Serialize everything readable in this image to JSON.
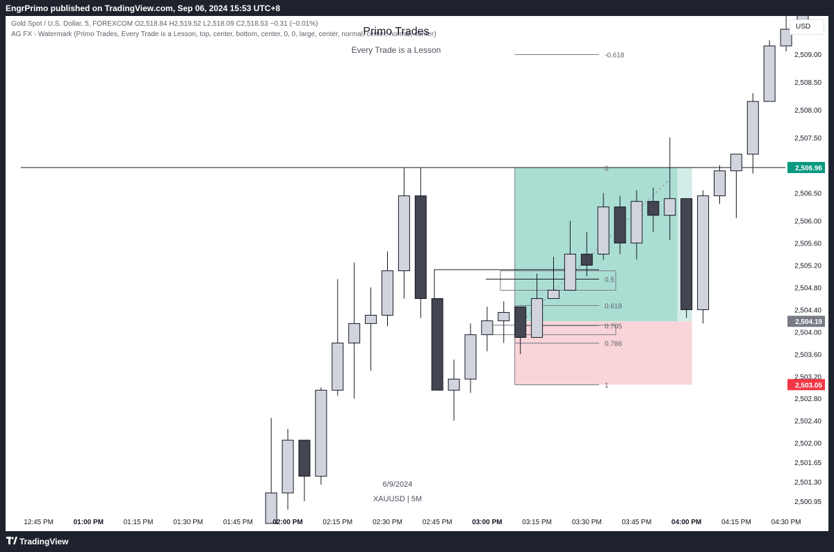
{
  "header": {
    "publish_line": "EngrPrimo published on TradingView.com, Sep 06, 2024 15:53 UTC+8"
  },
  "legend": {
    "symbol_line": "Gold Spot / U.S. Dollar, 5, FOREXCOM",
    "open": "O2,518.84",
    "high": "H2,519.52",
    "low": "L2,518.09",
    "close": "C2,518.53",
    "change": "−0.31 (−0.01%)",
    "indicator_line": "AG FX - Watermark (Primo Trades, Every Trade is a Lesson, top, center, bottom, center, 0, 0, large, center, normal, center, normal, center)"
  },
  "watermark": {
    "title": "Primo Trades",
    "subtitle": "Every Trade is a Lesson",
    "date": "6/9/2024",
    "symbol": "XAUUSD | 5M"
  },
  "toolbar": {
    "currency_label": "USD"
  },
  "footer": {
    "brand": "TradingView"
  },
  "colors": {
    "bull_fill": "#d1d4dc",
    "bear_fill": "#434651",
    "candle_border": "#131722",
    "target_zone": "#8fd3c4",
    "stop_zone": "#f7c9ce",
    "last_price_badge": "#089981",
    "stop_badge": "#f23645",
    "entry_badge": "#787b86"
  },
  "chart_data": {
    "type": "candlestick",
    "timeframe": "5",
    "y_axis_ticks": [
      "2,509.00",
      "2,508.50",
      "2,508.00",
      "2,507.50",
      "2,506.50",
      "2,506.00",
      "2,505.60",
      "2,505.20",
      "2,504.80",
      "2,504.40",
      "2,504.00",
      "2,503.60",
      "2,503.20",
      "2,502.80",
      "2,502.40",
      "2,502.00",
      "2,501.65",
      "2,501.30",
      "2,500.95"
    ],
    "ylim": [
      2500.85,
      2509.45
    ],
    "x_axis_ticks": [
      {
        "label": "12:45 PM",
        "t": -1,
        "bold": false
      },
      {
        "label": "01:00 PM",
        "t": 2,
        "bold": true
      },
      {
        "label": "01:15 PM",
        "t": 5,
        "bold": false
      },
      {
        "label": "01:30 PM",
        "t": 8,
        "bold": false
      },
      {
        "label": "01:45 PM",
        "t": 11,
        "bold": false
      },
      {
        "label": "02:00 PM",
        "t": 14,
        "bold": true
      },
      {
        "label": "02:15 PM",
        "t": 17,
        "bold": false
      },
      {
        "label": "02:30 PM",
        "t": 20,
        "bold": false
      },
      {
        "label": "02:45 PM",
        "t": 23,
        "bold": false
      },
      {
        "label": "03:00 PM",
        "t": 26,
        "bold": true
      },
      {
        "label": "03:15 PM",
        "t": 29,
        "bold": false
      },
      {
        "label": "03:30 PM",
        "t": 32,
        "bold": false
      },
      {
        "label": "03:45 PM",
        "t": 35,
        "bold": false
      },
      {
        "label": "04:00 PM",
        "t": 38,
        "bold": true
      },
      {
        "label": "04:15 PM",
        "t": 41,
        "bold": false
      },
      {
        "label": "04:30 PM",
        "t": 44,
        "bold": false
      }
    ],
    "candles": [
      {
        "time": "01:50 PM",
        "o": 2500.55,
        "h": 2502.45,
        "l": 2500.55,
        "c": 2501.1
      },
      {
        "time": "01:55 PM",
        "o": 2501.1,
        "h": 2502.25,
        "l": 2500.8,
        "c": 2502.05
      },
      {
        "time": "02:00 PM",
        "o": 2502.05,
        "h": 2502.05,
        "l": 2500.95,
        "c": 2501.4
      },
      {
        "time": "02:05 PM",
        "o": 2501.4,
        "h": 2503.0,
        "l": 2501.25,
        "c": 2502.95
      },
      {
        "time": "02:10 PM",
        "o": 2502.95,
        "h": 2504.95,
        "l": 2502.85,
        "c": 2503.8
      },
      {
        "time": "02:15 PM",
        "o": 2503.8,
        "h": 2505.25,
        "l": 2502.8,
        "c": 2504.15
      },
      {
        "time": "02:20 PM",
        "o": 2504.15,
        "h": 2504.8,
        "l": 2503.3,
        "c": 2504.3
      },
      {
        "time": "02:25 PM",
        "o": 2504.3,
        "h": 2505.45,
        "l": 2504.1,
        "c": 2505.1
      },
      {
        "time": "02:30 PM",
        "o": 2505.1,
        "h": 2506.95,
        "l": 2504.6,
        "c": 2506.45
      },
      {
        "time": "02:35 PM",
        "o": 2506.45,
        "h": 2506.95,
        "l": 2504.25,
        "c": 2504.6
      },
      {
        "time": "02:40 PM",
        "o": 2504.6,
        "h": 2504.6,
        "l": 2502.95,
        "c": 2502.95
      },
      {
        "time": "02:45 PM",
        "o": 2502.95,
        "h": 2503.5,
        "l": 2502.4,
        "c": 2503.15
      },
      {
        "time": "02:50 PM",
        "o": 2503.15,
        "h": 2504.15,
        "l": 2502.9,
        "c": 2503.95
      },
      {
        "time": "02:55 PM",
        "o": 2503.95,
        "h": 2504.45,
        "l": 2503.65,
        "c": 2504.2
      },
      {
        "time": "03:00 PM",
        "o": 2504.2,
        "h": 2504.55,
        "l": 2503.8,
        "c": 2504.35
      },
      {
        "time": "03:05 PM",
        "o": 2504.45,
        "h": 2504.45,
        "l": 2503.6,
        "c": 2503.9
      },
      {
        "time": "03:10 PM",
        "o": 2503.9,
        "h": 2505.05,
        "l": 2503.9,
        "c": 2504.6
      },
      {
        "time": "03:15 PM",
        "o": 2504.6,
        "h": 2505.35,
        "l": 2504.6,
        "c": 2504.75
      },
      {
        "time": "03:20 PM",
        "o": 2504.75,
        "h": 2506.0,
        "l": 2504.75,
        "c": 2505.4
      },
      {
        "time": "03:25 PM",
        "o": 2505.4,
        "h": 2505.8,
        "l": 2505.0,
        "c": 2505.2
      },
      {
        "time": "03:30 PM",
        "o": 2505.4,
        "h": 2506.5,
        "l": 2505.3,
        "c": 2506.25
      },
      {
        "time": "03:35 PM",
        "o": 2506.25,
        "h": 2506.45,
        "l": 2505.4,
        "c": 2505.6
      },
      {
        "time": "03:40 PM",
        "o": 2505.6,
        "h": 2506.55,
        "l": 2505.3,
        "c": 2506.35
      },
      {
        "time": "03:45 PM",
        "o": 2506.35,
        "h": 2506.6,
        "l": 2505.8,
        "c": 2506.1
      },
      {
        "time": "03:50 PM",
        "o": 2506.1,
        "h": 2507.5,
        "l": 2505.65,
        "c": 2506.4
      },
      {
        "time": "03:55 PM",
        "o": 2506.4,
        "h": 2506.4,
        "l": 2504.25,
        "c": 2504.4
      },
      {
        "time": "04:00 PM",
        "o": 2504.4,
        "h": 2506.55,
        "l": 2504.15,
        "c": 2506.45
      },
      {
        "time": "04:05 PM",
        "o": 2506.45,
        "h": 2507.0,
        "l": 2506.3,
        "c": 2506.9
      },
      {
        "time": "04:10 PM",
        "o": 2506.9,
        "h": 2507.2,
        "l": 2506.05,
        "c": 2507.2
      },
      {
        "time": "04:15 PM",
        "o": 2507.2,
        "h": 2508.3,
        "l": 2506.85,
        "c": 2508.15
      },
      {
        "time": "04:20 PM",
        "o": 2508.15,
        "h": 2509.25,
        "l": 2508.15,
        "c": 2509.15
      },
      {
        "time": "04:25 PM",
        "o": 2509.15,
        "h": 2509.7,
        "l": 2509.05,
        "c": 2509.45
      },
      {
        "time": "04:30 PM",
        "o": 2509.45,
        "h": 2509.9,
        "l": 2509.4,
        "c": 2509.8
      }
    ],
    "fib_levels": [
      {
        "ratio": "-0.618",
        "price": 2509.0
      },
      {
        "ratio": "0",
        "price": 2506.96
      },
      {
        "ratio": "0.5",
        "price": 2504.95
      },
      {
        "ratio": "0.618",
        "price": 2504.48
      },
      {
        "ratio": "0.705",
        "price": 2504.12
      },
      {
        "ratio": "0.786",
        "price": 2503.8
      },
      {
        "ratio": "1",
        "price": 2503.05
      }
    ],
    "horizontal_line": {
      "price": 2506.96
    },
    "position_tool": {
      "entry": 2504.19,
      "target": 2506.96,
      "stop": 2503.05,
      "start_time": "03:05 PM",
      "end_time": "03:55 PM"
    },
    "price_labels": [
      {
        "label": "2,506.96",
        "role": "last_price"
      },
      {
        "label": "2,504.19",
        "role": "entry"
      },
      {
        "label": "2,503.05",
        "role": "stop"
      }
    ]
  }
}
